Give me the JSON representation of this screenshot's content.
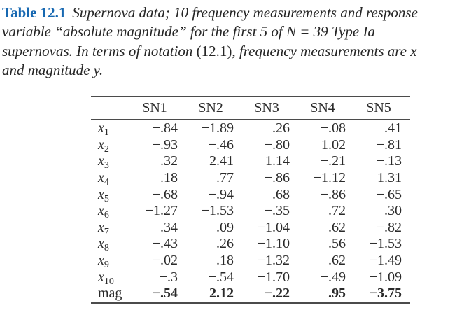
{
  "caption": {
    "label": "Table 12.1",
    "line1": "Supernova data; 10 frequency measurements and response",
    "line2": "variable “absolute magnitude” for the first 5 of N = 39 Type Ia",
    "line3_pre": "supernovas. In terms of notation ",
    "line3_ref": "(12.1)",
    "line3_post": ", frequency measurements are x",
    "line4": "and magnitude y."
  },
  "table": {
    "columns": [
      "",
      "SN1",
      "SN2",
      "SN3",
      "SN4",
      "SN5"
    ],
    "rows": [
      {
        "label": "x",
        "sub": "1",
        "bold": false,
        "values": [
          "−.84",
          "−1.89",
          ".26",
          "−.08",
          ".41"
        ]
      },
      {
        "label": "x",
        "sub": "2",
        "bold": false,
        "values": [
          "−.93",
          "−.46",
          "−.80",
          "1.02",
          "−.81"
        ]
      },
      {
        "label": "x",
        "sub": "3",
        "bold": false,
        "values": [
          ".32",
          "2.41",
          "1.14",
          "−.21",
          "−.13"
        ]
      },
      {
        "label": "x",
        "sub": "4",
        "bold": false,
        "values": [
          ".18",
          ".77",
          "−.86",
          "−1.12",
          "1.31"
        ]
      },
      {
        "label": "x",
        "sub": "5",
        "bold": false,
        "values": [
          "−.68",
          "−.94",
          ".68",
          "−.86",
          "−.65"
        ]
      },
      {
        "label": "x",
        "sub": "6",
        "bold": false,
        "values": [
          "−1.27",
          "−1.53",
          "−.35",
          ".72",
          ".30"
        ]
      },
      {
        "label": "x",
        "sub": "7",
        "bold": false,
        "values": [
          ".34",
          ".09",
          "−1.04",
          ".62",
          "−.82"
        ]
      },
      {
        "label": "x",
        "sub": "8",
        "bold": false,
        "values": [
          "−.43",
          ".26",
          "−1.10",
          ".56",
          "−1.53"
        ]
      },
      {
        "label": "x",
        "sub": "9",
        "bold": false,
        "values": [
          "−.02",
          ".18",
          "−1.32",
          ".62",
          "−1.49"
        ]
      },
      {
        "label": "x",
        "sub": "10",
        "bold": false,
        "values": [
          "−.3",
          "−.54",
          "−1.70",
          "−.49",
          "−1.09"
        ]
      },
      {
        "label": "mag",
        "sub": "",
        "bold": true,
        "values": [
          "−.54",
          "2.12",
          "−.22",
          ".95",
          "−3.75"
        ]
      }
    ]
  },
  "colors": {
    "accent_blue": "#1768b1",
    "text": "#262626",
    "rule": "#4b4b4b"
  }
}
